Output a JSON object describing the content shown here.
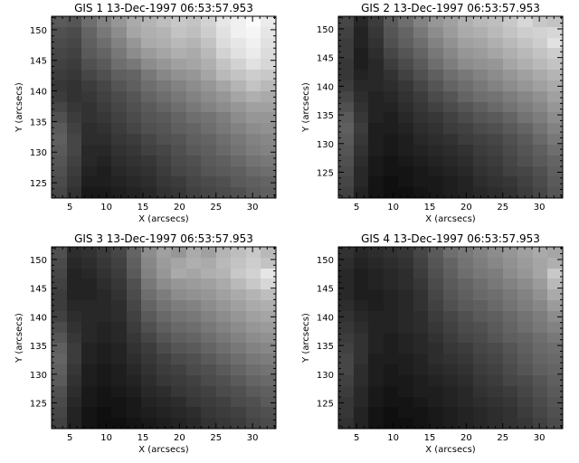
{
  "figure": {
    "background": "#ffffff",
    "foreground": "#000000"
  },
  "chart_data": [
    {
      "type": "heatmap",
      "title": "GIS 1 13-Dec-1997 06:53:57.953",
      "xlabel": "X (arcsecs)",
      "ylabel": "Y (arcsecs)",
      "xlim": [
        2.5,
        33.2
      ],
      "ylim": [
        122.5,
        152.2
      ],
      "xticks": [
        "5",
        "10",
        "15",
        "20",
        "25",
        "30"
      ],
      "yticks": [
        "125",
        "130",
        "135",
        "140",
        "145",
        "150"
      ],
      "colormap": "grayscale",
      "grid_cols": 15,
      "grid_rows": 17,
      "intensity_rows": [
        [
          90,
          85,
          110,
          130,
          150,
          170,
          180,
          190,
          200,
          195,
          210,
          230,
          240,
          250,
          235
        ],
        [
          80,
          75,
          100,
          120,
          140,
          165,
          175,
          180,
          195,
          190,
          205,
          225,
          240,
          245,
          230
        ],
        [
          75,
          70,
          95,
          110,
          130,
          150,
          170,
          175,
          185,
          180,
          195,
          220,
          230,
          240,
          225
        ],
        [
          70,
          65,
          90,
          100,
          120,
          140,
          155,
          165,
          175,
          170,
          185,
          210,
          225,
          235,
          220
        ],
        [
          65,
          60,
          80,
          90,
          110,
          120,
          140,
          150,
          160,
          165,
          175,
          195,
          210,
          225,
          215
        ],
        [
          60,
          55,
          70,
          80,
          95,
          100,
          120,
          135,
          145,
          150,
          165,
          185,
          195,
          205,
          200
        ],
        [
          55,
          50,
          60,
          70,
          85,
          95,
          110,
          120,
          130,
          140,
          150,
          165,
          180,
          195,
          185
        ],
        [
          60,
          50,
          55,
          65,
          75,
          85,
          100,
          110,
          120,
          130,
          140,
          150,
          165,
          175,
          170
        ],
        [
          70,
          55,
          50,
          60,
          70,
          80,
          90,
          100,
          110,
          120,
          130,
          140,
          150,
          160,
          160
        ],
        [
          80,
          60,
          50,
          55,
          65,
          75,
          85,
          90,
          100,
          110,
          115,
          125,
          140,
          150,
          150
        ],
        [
          90,
          65,
          45,
          50,
          60,
          70,
          80,
          85,
          95,
          100,
          110,
          120,
          130,
          140,
          145
        ],
        [
          95,
          70,
          45,
          45,
          55,
          60,
          70,
          80,
          85,
          95,
          100,
          110,
          120,
          130,
          135
        ],
        [
          90,
          70,
          40,
          40,
          50,
          55,
          65,
          70,
          80,
          90,
          95,
          105,
          115,
          125,
          130
        ],
        [
          85,
          65,
          40,
          35,
          45,
          50,
          55,
          65,
          75,
          80,
          90,
          95,
          105,
          115,
          120
        ],
        [
          80,
          60,
          35,
          30,
          40,
          45,
          50,
          60,
          70,
          75,
          85,
          90,
          95,
          105,
          110
        ],
        [
          75,
          55,
          30,
          30,
          35,
          40,
          45,
          55,
          60,
          70,
          75,
          80,
          90,
          95,
          100
        ],
        [
          70,
          50,
          25,
          25,
          30,
          35,
          40,
          50,
          55,
          65,
          70,
          75,
          80,
          90,
          95
        ]
      ]
    },
    {
      "type": "heatmap",
      "title": "GIS 2 13-Dec-1997 06:53:57.953",
      "xlabel": "X (arcsecs)",
      "ylabel": "Y (arcsecs)",
      "xlim": [
        2.5,
        33.2
      ],
      "ylim": [
        120.5,
        152.2
      ],
      "xticks": [
        "5",
        "10",
        "15",
        "20",
        "25",
        "30"
      ],
      "yticks": [
        "125",
        "130",
        "135",
        "140",
        "145",
        "150"
      ],
      "colormap": "grayscale",
      "grid_cols": 15,
      "grid_rows": 17,
      "intensity_rows": [
        [
          70,
          40,
          60,
          90,
          110,
          130,
          150,
          160,
          175,
          185,
          190,
          200,
          215,
          200,
          195
        ],
        [
          65,
          35,
          55,
          85,
          100,
          120,
          140,
          155,
          170,
          175,
          185,
          195,
          205,
          210,
          215
        ],
        [
          60,
          35,
          50,
          80,
          95,
          110,
          130,
          145,
          160,
          165,
          175,
          185,
          195,
          205,
          225
        ],
        [
          60,
          30,
          45,
          70,
          85,
          100,
          120,
          135,
          150,
          155,
          165,
          175,
          185,
          195,
          205
        ],
        [
          55,
          30,
          40,
          60,
          75,
          90,
          110,
          125,
          140,
          145,
          150,
          165,
          175,
          185,
          195
        ],
        [
          55,
          35,
          40,
          50,
          65,
          80,
          95,
          110,
          120,
          130,
          140,
          150,
          160,
          170,
          180
        ],
        [
          60,
          40,
          40,
          45,
          55,
          70,
          85,
          100,
          110,
          120,
          130,
          140,
          150,
          160,
          170
        ],
        [
          70,
          45,
          35,
          40,
          50,
          60,
          75,
          85,
          100,
          110,
          115,
          125,
          135,
          145,
          160
        ],
        [
          80,
          50,
          35,
          35,
          45,
          55,
          65,
          75,
          85,
          95,
          105,
          115,
          125,
          135,
          150
        ],
        [
          90,
          55,
          35,
          30,
          40,
          50,
          55,
          65,
          75,
          85,
          90,
          100,
          115,
          125,
          140
        ],
        [
          95,
          60,
          30,
          30,
          35,
          45,
          50,
          60,
          65,
          75,
          80,
          90,
          100,
          115,
          130
        ],
        [
          90,
          55,
          30,
          25,
          30,
          40,
          45,
          50,
          60,
          65,
          70,
          80,
          90,
          105,
          120
        ],
        [
          85,
          50,
          30,
          25,
          30,
          35,
          40,
          45,
          50,
          60,
          65,
          75,
          85,
          95,
          110
        ],
        [
          80,
          45,
          25,
          20,
          25,
          30,
          35,
          40,
          45,
          55,
          60,
          70,
          80,
          90,
          100
        ],
        [
          75,
          40,
          25,
          20,
          20,
          25,
          30,
          35,
          40,
          50,
          55,
          65,
          70,
          80,
          95
        ],
        [
          70,
          40,
          20,
          15,
          20,
          25,
          25,
          30,
          35,
          45,
          50,
          55,
          65,
          75,
          90
        ],
        [
          65,
          35,
          20,
          15,
          15,
          20,
          25,
          30,
          35,
          40,
          45,
          50,
          60,
          70,
          85
        ]
      ]
    },
    {
      "type": "heatmap",
      "title": "GIS 3 13-Dec-1997 06:53:57.953",
      "xlabel": "X (arcsecs)",
      "ylabel": "Y (arcsecs)",
      "xlim": [
        2.5,
        33.2
      ],
      "ylim": [
        120.5,
        152.2
      ],
      "xticks": [
        "5",
        "10",
        "15",
        "20",
        "25",
        "30"
      ],
      "yticks": [
        "125",
        "130",
        "135",
        "140",
        "145",
        "150"
      ],
      "colormap": "grayscale",
      "grid_cols": 15,
      "grid_rows": 17,
      "intensity_rows": [
        [
          80,
          45,
          50,
          60,
          70,
          100,
          140,
          160,
          150,
          170,
          160,
          180,
          190,
          200,
          185
        ],
        [
          75,
          40,
          45,
          55,
          65,
          95,
          135,
          155,
          165,
          175,
          170,
          185,
          195,
          205,
          195
        ],
        [
          70,
          35,
          40,
          50,
          60,
          90,
          130,
          150,
          170,
          165,
          175,
          180,
          200,
          210,
          230
        ],
        [
          65,
          35,
          35,
          45,
          55,
          80,
          120,
          140,
          150,
          155,
          160,
          170,
          185,
          200,
          215
        ],
        [
          60,
          35,
          35,
          40,
          50,
          75,
          110,
          125,
          140,
          145,
          150,
          160,
          170,
          180,
          190
        ],
        [
          60,
          40,
          40,
          40,
          45,
          70,
          100,
          115,
          125,
          130,
          140,
          150,
          160,
          170,
          175
        ],
        [
          65,
          45,
          40,
          40,
          45,
          65,
          90,
          105,
          115,
          120,
          130,
          140,
          150,
          160,
          165
        ],
        [
          75,
          50,
          40,
          35,
          40,
          60,
          80,
          95,
          105,
          110,
          120,
          130,
          140,
          150,
          155
        ],
        [
          85,
          55,
          40,
          35,
          40,
          55,
          70,
          85,
          95,
          100,
          110,
          120,
          130,
          140,
          145
        ],
        [
          95,
          60,
          35,
          30,
          35,
          50,
          60,
          75,
          85,
          90,
          100,
          110,
          120,
          130,
          135
        ],
        [
          100,
          60,
          35,
          30,
          35,
          45,
          55,
          65,
          75,
          80,
          90,
          100,
          110,
          120,
          125
        ],
        [
          95,
          55,
          30,
          25,
          30,
          40,
          50,
          60,
          65,
          75,
          80,
          90,
          100,
          110,
          115
        ],
        [
          90,
          50,
          30,
          25,
          30,
          35,
          45,
          55,
          60,
          65,
          75,
          80,
          90,
          100,
          105
        ],
        [
          80,
          45,
          25,
          20,
          25,
          30,
          40,
          45,
          55,
          60,
          65,
          75,
          80,
          90,
          95
        ],
        [
          75,
          40,
          25,
          20,
          20,
          25,
          35,
          40,
          45,
          55,
          60,
          65,
          75,
          80,
          90
        ],
        [
          70,
          35,
          20,
          15,
          20,
          25,
          30,
          35,
          40,
          45,
          55,
          60,
          65,
          75,
          80
        ],
        [
          65,
          35,
          20,
          15,
          15,
          20,
          25,
          30,
          35,
          40,
          50,
          55,
          60,
          70,
          75
        ]
      ]
    },
    {
      "type": "heatmap",
      "title": "GIS 4 13-Dec-1997 06:53:57.953",
      "xlabel": "X (arcsecs)",
      "ylabel": "Y (arcsecs)",
      "xlim": [
        2.5,
        33.2
      ],
      "ylim": [
        120.5,
        152.2
      ],
      "xticks": [
        "5",
        "10",
        "15",
        "20",
        "25",
        "30"
      ],
      "yticks": [
        "125",
        "130",
        "135",
        "140",
        "145",
        "150"
      ],
      "colormap": "grayscale",
      "grid_cols": 15,
      "grid_rows": 17,
      "intensity_rows": [
        [
          50,
          40,
          45,
          50,
          55,
          70,
          90,
          110,
          120,
          130,
          140,
          150,
          160,
          170,
          165
        ],
        [
          45,
          35,
          40,
          45,
          50,
          65,
          85,
          100,
          115,
          125,
          135,
          145,
          155,
          165,
          175
        ],
        [
          40,
          30,
          35,
          40,
          45,
          60,
          80,
          95,
          110,
          120,
          125,
          140,
          150,
          165,
          200
        ],
        [
          40,
          30,
          35,
          40,
          45,
          55,
          75,
          90,
          100,
          110,
          120,
          130,
          140,
          155,
          185
        ],
        [
          40,
          30,
          30,
          35,
          40,
          50,
          70,
          85,
          95,
          105,
          110,
          120,
          130,
          145,
          170
        ],
        [
          45,
          35,
          30,
          35,
          40,
          50,
          65,
          80,
          90,
          95,
          105,
          115,
          125,
          135,
          155
        ],
        [
          50,
          40,
          35,
          35,
          40,
          45,
          60,
          70,
          80,
          90,
          95,
          105,
          115,
          125,
          140
        ],
        [
          55,
          45,
          35,
          35,
          40,
          45,
          55,
          65,
          75,
          80,
          90,
          100,
          110,
          120,
          130
        ],
        [
          60,
          50,
          35,
          30,
          35,
          40,
          50,
          60,
          70,
          75,
          85,
          95,
          100,
          110,
          120
        ],
        [
          65,
          50,
          35,
          30,
          35,
          40,
          45,
          55,
          60,
          70,
          75,
          85,
          95,
          105,
          110
        ],
        [
          70,
          50,
          30,
          30,
          30,
          35,
          45,
          50,
          55,
          65,
          70,
          80,
          90,
          100,
          105
        ],
        [
          70,
          45,
          30,
          25,
          30,
          35,
          40,
          45,
          50,
          60,
          65,
          75,
          85,
          95,
          100
        ],
        [
          65,
          45,
          30,
          25,
          25,
          30,
          35,
          40,
          45,
          55,
          60,
          70,
          75,
          85,
          95
        ],
        [
          60,
          40,
          25,
          20,
          25,
          30,
          30,
          35,
          40,
          50,
          55,
          60,
          70,
          80,
          90
        ],
        [
          55,
          40,
          25,
          20,
          20,
          25,
          30,
          35,
          40,
          45,
          50,
          55,
          65,
          75,
          85
        ],
        [
          55,
          35,
          20,
          15,
          20,
          20,
          25,
          30,
          35,
          40,
          45,
          50,
          60,
          70,
          80
        ],
        [
          50,
          35,
          20,
          15,
          15,
          20,
          25,
          30,
          35,
          40,
          45,
          50,
          55,
          65,
          75
        ]
      ]
    }
  ]
}
